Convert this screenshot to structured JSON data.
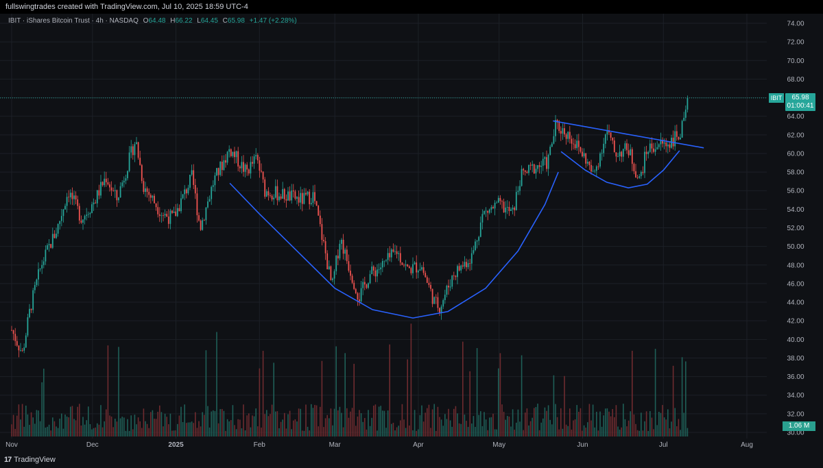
{
  "header": {
    "caption": "fullswingtrades created with TradingView.com, Jul 10, 2025 18:59 UTC-4"
  },
  "legend": {
    "symbol": "IBIT · iShares Bitcoin Trust · 4h · NASDAQ",
    "o_label": "O",
    "o_value": "64.48",
    "h_label": "H",
    "h_value": "66.22",
    "l_label": "L",
    "l_value": "64.45",
    "c_label": "C",
    "c_value": "65.98",
    "change": "+1.47 (+2.28%)"
  },
  "price_tag": {
    "symbol": "IBIT",
    "price": "65.98",
    "countdown": "01:00:41"
  },
  "volume_tag": "1.06 M",
  "footer": {
    "brand": "TradingView"
  },
  "colors": {
    "up": "#26a69a",
    "down": "#ef5350",
    "pattern": "#2962ff",
    "background": "#0f1115"
  },
  "chart_data": {
    "type": "candlestick",
    "timeframe": "4h",
    "y_axis": {
      "min": 30,
      "max": 74,
      "ticks": [
        "74.00",
        "72.00",
        "70.00",
        "68.00",
        "66.00",
        "64.00",
        "62.00",
        "60.00",
        "58.00",
        "56.00",
        "54.00",
        "52.00",
        "50.00",
        "48.00",
        "46.00",
        "44.00",
        "42.00",
        "40.00",
        "38.00",
        "36.00",
        "34.00",
        "32.00",
        "30.00"
      ]
    },
    "x_axis": {
      "labels": [
        "Nov",
        "Dec",
        "2025",
        "Feb",
        "Mar",
        "Apr",
        "May",
        "Jun",
        "Jul",
        "Aug"
      ]
    },
    "last_close": 65.98,
    "approx_close_path": [
      {
        "date": "2024-11-01",
        "close": 41.0
      },
      {
        "date": "2024-11-05",
        "close": 38.5
      },
      {
        "date": "2024-11-08",
        "close": 43.5
      },
      {
        "date": "2024-11-12",
        "close": 48.0
      },
      {
        "date": "2024-11-18",
        "close": 52.0
      },
      {
        "date": "2024-11-22",
        "close": 56.0
      },
      {
        "date": "2024-11-27",
        "close": 53.0
      },
      {
        "date": "2024-12-02",
        "close": 55.0
      },
      {
        "date": "2024-12-06",
        "close": 57.5
      },
      {
        "date": "2024-12-10",
        "close": 55.0
      },
      {
        "date": "2024-12-17",
        "close": 61.5
      },
      {
        "date": "2024-12-20",
        "close": 56.5
      },
      {
        "date": "2024-12-27",
        "close": 53.5
      },
      {
        "date": "2024-12-31",
        "close": 53.0
      },
      {
        "date": "2025-01-07",
        "close": 57.5
      },
      {
        "date": "2025-01-10",
        "close": 52.0
      },
      {
        "date": "2025-01-15",
        "close": 57.0
      },
      {
        "date": "2025-01-21",
        "close": 60.5
      },
      {
        "date": "2025-01-27",
        "close": 58.0
      },
      {
        "date": "2025-01-31",
        "close": 59.5
      },
      {
        "date": "2025-02-03",
        "close": 56.0
      },
      {
        "date": "2025-02-10",
        "close": 55.5
      },
      {
        "date": "2025-02-17",
        "close": 55.0
      },
      {
        "date": "2025-02-21",
        "close": 55.5
      },
      {
        "date": "2025-02-25",
        "close": 50.0
      },
      {
        "date": "2025-02-28",
        "close": 45.5
      },
      {
        "date": "2025-03-03",
        "close": 51.0
      },
      {
        "date": "2025-03-05",
        "close": 49.0
      },
      {
        "date": "2025-03-10",
        "close": 44.5
      },
      {
        "date": "2025-03-14",
        "close": 47.0
      },
      {
        "date": "2025-03-19",
        "close": 48.0
      },
      {
        "date": "2025-03-24",
        "close": 49.5
      },
      {
        "date": "2025-03-28",
        "close": 47.5
      },
      {
        "date": "2025-04-02",
        "close": 48.0
      },
      {
        "date": "2025-04-07",
        "close": 44.0
      },
      {
        "date": "2025-04-09",
        "close": 43.5
      },
      {
        "date": "2025-04-14",
        "close": 47.0
      },
      {
        "date": "2025-04-21",
        "close": 49.0
      },
      {
        "date": "2025-04-25",
        "close": 53.5
      },
      {
        "date": "2025-05-01",
        "close": 54.5
      },
      {
        "date": "2025-05-06",
        "close": 53.5
      },
      {
        "date": "2025-05-09",
        "close": 57.5
      },
      {
        "date": "2025-05-14",
        "close": 58.5
      },
      {
        "date": "2025-05-19",
        "close": 59.0
      },
      {
        "date": "2025-05-22",
        "close": 63.0
      },
      {
        "date": "2025-05-27",
        "close": 62.0
      },
      {
        "date": "2025-06-02",
        "close": 59.5
      },
      {
        "date": "2025-06-05",
        "close": 57.5
      },
      {
        "date": "2025-06-10",
        "close": 62.5
      },
      {
        "date": "2025-06-13",
        "close": 60.0
      },
      {
        "date": "2025-06-18",
        "close": 60.5
      },
      {
        "date": "2025-06-22",
        "close": 57.0
      },
      {
        "date": "2025-06-25",
        "close": 60.5
      },
      {
        "date": "2025-06-30",
        "close": 61.0
      },
      {
        "date": "2025-07-02",
        "close": 61.0
      },
      {
        "date": "2025-07-07",
        "close": 62.0
      },
      {
        "date": "2025-07-09",
        "close": 63.5
      },
      {
        "date": "2025-07-10",
        "close": 65.98
      }
    ]
  }
}
